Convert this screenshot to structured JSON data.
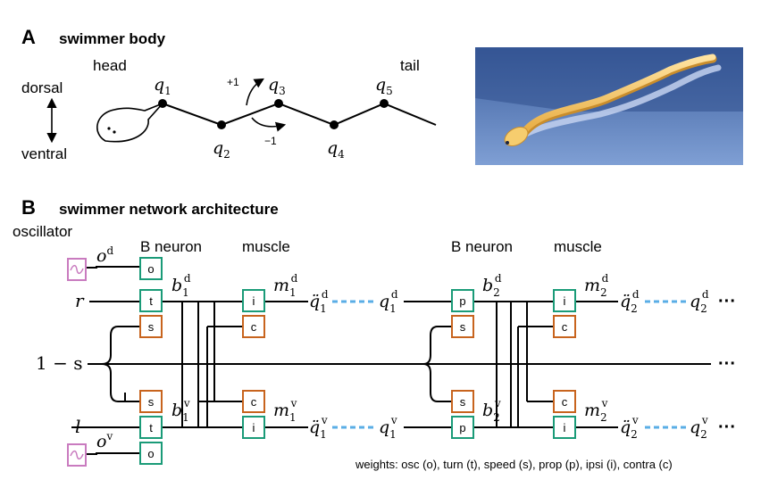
{
  "panel_a": {
    "letter": "A",
    "title": "swimmer body",
    "head_label": "head",
    "tail_label": "tail",
    "dorsal_label": "dorsal",
    "ventral_label": "ventral",
    "plus_one": "+1",
    "minus_one": "−1",
    "joints": [
      {
        "sym": "q",
        "sub": "1"
      },
      {
        "sym": "q",
        "sub": "2"
      },
      {
        "sym": "q",
        "sub": "3"
      },
      {
        "sym": "q",
        "sub": "4"
      },
      {
        "sym": "q",
        "sub": "5"
      }
    ]
  },
  "panel_b": {
    "letter": "B",
    "title": "swimmer network architecture",
    "oscillator_label": "oscillator",
    "b_neuron_label": "B neuron",
    "muscle_label": "muscle",
    "osc_dorsal": {
      "sym": "o",
      "sup": "d"
    },
    "osc_ventral": {
      "sym": "o",
      "sup": "v"
    },
    "input_r": "r",
    "input_l": "l",
    "input_speed": "1 − s",
    "ellipsis": "···",
    "weights_caption": "weights: osc (o), turn (t), speed (s), prop (p), ipsi (i), contra (c)",
    "syn": {
      "osc": "o",
      "turn": "t",
      "speed": "s",
      "prop": "p",
      "ipsi": "i",
      "contra": "c"
    },
    "neurons": {
      "b1d": {
        "sym": "b",
        "sub": "1",
        "sup": "d"
      },
      "b1v": {
        "sym": "b",
        "sub": "1",
        "sup": "v"
      },
      "b2d": {
        "sym": "b",
        "sub": "2",
        "sup": "d"
      },
      "b2v": {
        "sym": "b",
        "sub": "2",
        "sup": "v"
      },
      "m1d": {
        "sym": "m",
        "sub": "1",
        "sup": "d"
      },
      "m1v": {
        "sym": "m",
        "sub": "1",
        "sup": "v"
      },
      "m2d": {
        "sym": "m",
        "sub": "2",
        "sup": "d"
      },
      "m2v": {
        "sym": "m",
        "sub": "2",
        "sup": "v"
      },
      "qdd1d": {
        "sym": "q̈",
        "sub": "1",
        "sup": "d"
      },
      "qdd1v": {
        "sym": "q̈",
        "sub": "1",
        "sup": "v"
      },
      "qdd2d": {
        "sym": "q̈",
        "sub": "2",
        "sup": "d"
      },
      "qdd2v": {
        "sym": "q̈",
        "sub": "2",
        "sup": "v"
      },
      "q1d": {
        "sym": "q",
        "sub": "1",
        "sup": "d"
      },
      "q1v": {
        "sym": "q",
        "sub": "1",
        "sup": "v"
      },
      "q2d": {
        "sym": "q",
        "sub": "2",
        "sup": "d"
      },
      "q2v": {
        "sym": "q",
        "sub": "2",
        "sup": "v"
      }
    }
  },
  "colors": {
    "osc_box": "#c97bbf",
    "excitatory_box": "#1a9b78",
    "inhibitory_box": "#c8641e",
    "dashed_link": "#5aaee6",
    "line": "#000000"
  }
}
